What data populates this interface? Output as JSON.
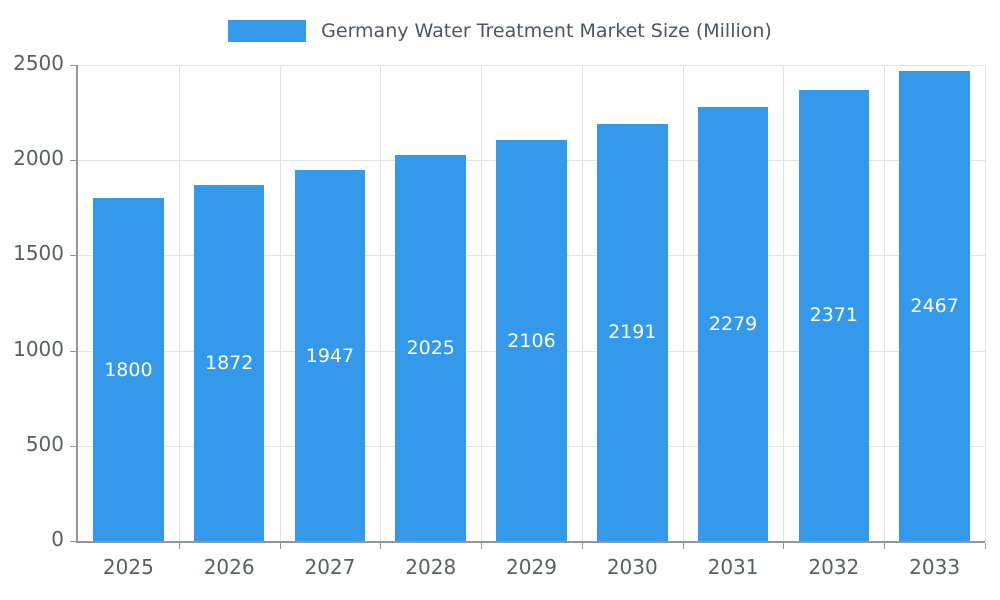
{
  "chart_data": {
    "type": "bar",
    "title": "Germany Water Treatment Market Size (Million)",
    "categories": [
      "2025",
      "2026",
      "2027",
      "2028",
      "2029",
      "2030",
      "2031",
      "2032",
      "2033"
    ],
    "values": [
      1800,
      1872,
      1947,
      2025,
      2106,
      2191,
      2279,
      2371,
      2467
    ],
    "xlabel": "",
    "ylabel": "",
    "ylim": [
      0,
      2500
    ],
    "ytick_step": 500,
    "y_tick_labels": [
      "0",
      "500",
      "1000",
      "1500",
      "2000",
      "2500"
    ],
    "grid": true,
    "legend_position": "top",
    "value_labels_shown": true,
    "colors": {
      "bar": "#3498EB",
      "value_label": "#FFFFFF",
      "grid_line": "#E3E3E3",
      "axis_line": "#8F969C",
      "tick_label": "#595F66",
      "legend_text": "#4D5663"
    }
  }
}
